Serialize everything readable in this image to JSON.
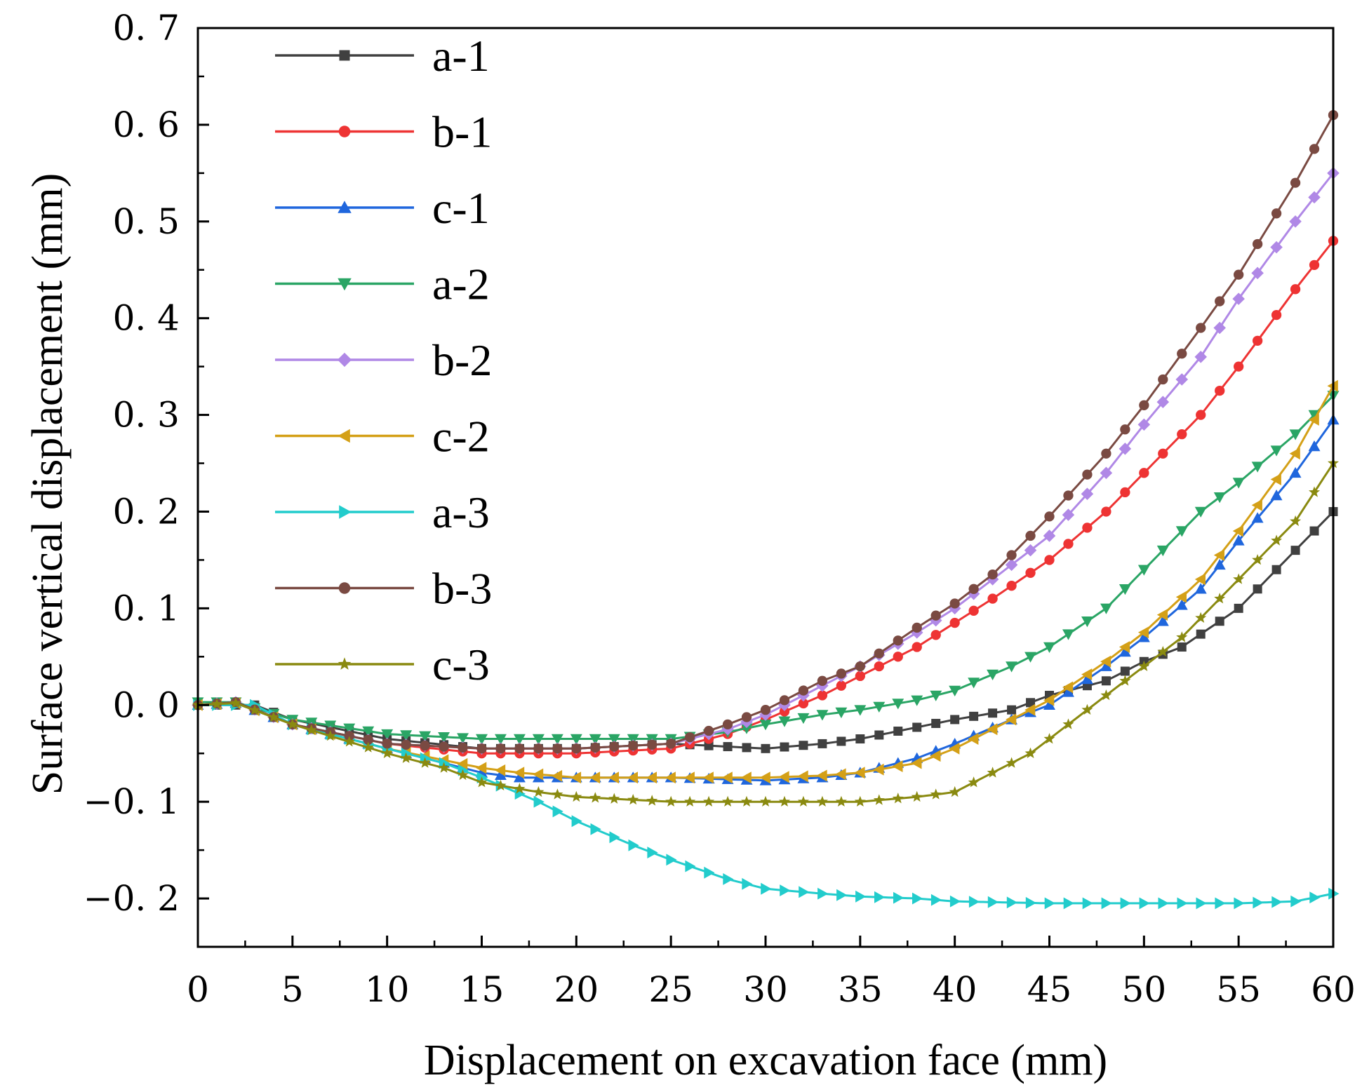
{
  "chart_data": {
    "type": "line",
    "title": "",
    "xlabel": "Displacement on excavation face (mm)",
    "ylabel": "Surface vertical displacement (mm)",
    "xlim": [
      0,
      60
    ],
    "ylim": [
      -0.25,
      0.7
    ],
    "x_ticks": [
      0,
      5,
      10,
      15,
      20,
      25,
      30,
      35,
      40,
      45,
      50,
      55,
      60
    ],
    "x_tick_labels": [
      "0",
      "5",
      "10",
      "15",
      "20",
      "25",
      "30",
      "35",
      "40",
      "45",
      "50",
      "55",
      "60"
    ],
    "y_ticks": [
      -0.2,
      -0.1,
      0.0,
      0.1,
      0.2,
      0.3,
      0.4,
      0.5,
      0.6,
      0.7
    ],
    "y_tick_labels": [
      "−0. 2",
      "−0. 1",
      "0. 0",
      "0. 1",
      "0. 2",
      "0. 3",
      "0. 4",
      "0. 5",
      "0. 6",
      "0. 7"
    ],
    "grid": false,
    "legend_position": "top-left",
    "series": [
      {
        "name": "a-1",
        "color": "#404040",
        "marker": "square",
        "points": [
          [
            0,
            0
          ],
          [
            3,
            0.0
          ],
          [
            5,
            -0.015
          ],
          [
            10,
            -0.035
          ],
          [
            15,
            -0.045
          ],
          [
            20,
            -0.045
          ],
          [
            25,
            -0.04
          ],
          [
            30,
            -0.045
          ],
          [
            33,
            -0.04
          ],
          [
            35,
            -0.035
          ],
          [
            40,
            -0.015
          ],
          [
            43,
            -0.005
          ],
          [
            45,
            0.01
          ],
          [
            48,
            0.025
          ],
          [
            50,
            0.045
          ],
          [
            52,
            0.06
          ],
          [
            55,
            0.1
          ],
          [
            57,
            0.14
          ],
          [
            60,
            0.2
          ]
        ]
      },
      {
        "name": "b-1",
        "color": "#ee3333",
        "marker": "circle",
        "points": [
          [
            0,
            0
          ],
          [
            2,
            0.003
          ],
          [
            5,
            -0.02
          ],
          [
            10,
            -0.04
          ],
          [
            15,
            -0.05
          ],
          [
            20,
            -0.05
          ],
          [
            25,
            -0.045
          ],
          [
            28,
            -0.03
          ],
          [
            30,
            -0.015
          ],
          [
            33,
            0.01
          ],
          [
            35,
            0.03
          ],
          [
            38,
            0.06
          ],
          [
            40,
            0.085
          ],
          [
            42,
            0.11
          ],
          [
            45,
            0.15
          ],
          [
            48,
            0.2
          ],
          [
            50,
            0.24
          ],
          [
            53,
            0.3
          ],
          [
            55,
            0.35
          ],
          [
            58,
            0.43
          ],
          [
            60,
            0.48
          ]
        ]
      },
      {
        "name": "c-1",
        "color": "#1f66dd",
        "marker": "triangle-up",
        "points": [
          [
            0,
            0
          ],
          [
            2,
            0.002
          ],
          [
            5,
            -0.02
          ],
          [
            10,
            -0.045
          ],
          [
            15,
            -0.07
          ],
          [
            17,
            -0.075
          ],
          [
            20,
            -0.075
          ],
          [
            25,
            -0.075
          ],
          [
            30,
            -0.078
          ],
          [
            33,
            -0.075
          ],
          [
            35,
            -0.07
          ],
          [
            38,
            -0.055
          ],
          [
            40,
            -0.04
          ],
          [
            43,
            -0.015
          ],
          [
            45,
            0.0
          ],
          [
            48,
            0.04
          ],
          [
            50,
            0.07
          ],
          [
            53,
            0.12
          ],
          [
            55,
            0.17
          ],
          [
            58,
            0.24
          ],
          [
            60,
            0.295
          ]
        ]
      },
      {
        "name": "a-2",
        "color": "#2aa565",
        "marker": "triangle-down",
        "points": [
          [
            0,
            0.003
          ],
          [
            2,
            0.003
          ],
          [
            5,
            -0.015
          ],
          [
            10,
            -0.03
          ],
          [
            15,
            -0.035
          ],
          [
            20,
            -0.035
          ],
          [
            25,
            -0.035
          ],
          [
            28,
            -0.028
          ],
          [
            30,
            -0.02
          ],
          [
            33,
            -0.01
          ],
          [
            35,
            -0.005
          ],
          [
            38,
            0.005
          ],
          [
            40,
            0.015
          ],
          [
            43,
            0.04
          ],
          [
            45,
            0.06
          ],
          [
            48,
            0.1
          ],
          [
            50,
            0.14
          ],
          [
            53,
            0.2
          ],
          [
            55,
            0.23
          ],
          [
            58,
            0.28
          ],
          [
            60,
            0.32
          ]
        ]
      },
      {
        "name": "b-2",
        "color": "#b088e6",
        "marker": "diamond",
        "points": [
          [
            0,
            0
          ],
          [
            2,
            0.003
          ],
          [
            5,
            -0.02
          ],
          [
            10,
            -0.04
          ],
          [
            15,
            -0.045
          ],
          [
            20,
            -0.045
          ],
          [
            25,
            -0.04
          ],
          [
            28,
            -0.025
          ],
          [
            30,
            -0.01
          ],
          [
            33,
            0.02
          ],
          [
            35,
            0.04
          ],
          [
            38,
            0.075
          ],
          [
            40,
            0.1
          ],
          [
            42,
            0.13
          ],
          [
            45,
            0.175
          ],
          [
            48,
            0.24
          ],
          [
            50,
            0.29
          ],
          [
            53,
            0.36
          ],
          [
            55,
            0.42
          ],
          [
            58,
            0.5
          ],
          [
            60,
            0.55
          ]
        ]
      },
      {
        "name": "c-2",
        "color": "#d4a017",
        "marker": "triangle-left",
        "points": [
          [
            0,
            0
          ],
          [
            2,
            0.002
          ],
          [
            5,
            -0.02
          ],
          [
            10,
            -0.045
          ],
          [
            15,
            -0.065
          ],
          [
            17,
            -0.07
          ],
          [
            20,
            -0.075
          ],
          [
            25,
            -0.075
          ],
          [
            30,
            -0.075
          ],
          [
            33,
            -0.073
          ],
          [
            35,
            -0.07
          ],
          [
            38,
            -0.06
          ],
          [
            40,
            -0.045
          ],
          [
            43,
            -0.015
          ],
          [
            45,
            0.005
          ],
          [
            48,
            0.045
          ],
          [
            50,
            0.075
          ],
          [
            53,
            0.13
          ],
          [
            55,
            0.18
          ],
          [
            58,
            0.26
          ],
          [
            60,
            0.33
          ]
        ]
      },
      {
        "name": "a-3",
        "color": "#22cccc",
        "marker": "triangle-right",
        "points": [
          [
            0,
            0
          ],
          [
            3,
            0.0
          ],
          [
            5,
            -0.02
          ],
          [
            10,
            -0.045
          ],
          [
            13,
            -0.06
          ],
          [
            15,
            -0.075
          ],
          [
            18,
            -0.1
          ],
          [
            20,
            -0.12
          ],
          [
            23,
            -0.145
          ],
          [
            25,
            -0.16
          ],
          [
            28,
            -0.18
          ],
          [
            30,
            -0.19
          ],
          [
            33,
            -0.195
          ],
          [
            35,
            -0.198
          ],
          [
            38,
            -0.2
          ],
          [
            40,
            -0.203
          ],
          [
            45,
            -0.205
          ],
          [
            50,
            -0.205
          ],
          [
            55,
            -0.205
          ],
          [
            58,
            -0.203
          ],
          [
            60,
            -0.195
          ]
        ]
      },
      {
        "name": "b-3",
        "color": "#7a4a42",
        "marker": "circle",
        "points": [
          [
            0,
            0
          ],
          [
            2,
            0.003
          ],
          [
            5,
            -0.02
          ],
          [
            10,
            -0.04
          ],
          [
            15,
            -0.045
          ],
          [
            20,
            -0.045
          ],
          [
            25,
            -0.04
          ],
          [
            28,
            -0.02
          ],
          [
            30,
            -0.005
          ],
          [
            33,
            0.025
          ],
          [
            35,
            0.04
          ],
          [
            38,
            0.08
          ],
          [
            40,
            0.105
          ],
          [
            42,
            0.135
          ],
          [
            45,
            0.195
          ],
          [
            48,
            0.26
          ],
          [
            50,
            0.31
          ],
          [
            53,
            0.39
          ],
          [
            55,
            0.445
          ],
          [
            58,
            0.54
          ],
          [
            60,
            0.61
          ]
        ]
      },
      {
        "name": "c-3",
        "color": "#8a8a10",
        "marker": "star",
        "points": [
          [
            0,
            0
          ],
          [
            2,
            0.002
          ],
          [
            5,
            -0.02
          ],
          [
            10,
            -0.05
          ],
          [
            13,
            -0.065
          ],
          [
            15,
            -0.08
          ],
          [
            18,
            -0.09
          ],
          [
            20,
            -0.095
          ],
          [
            25,
            -0.1
          ],
          [
            30,
            -0.1
          ],
          [
            35,
            -0.1
          ],
          [
            38,
            -0.095
          ],
          [
            40,
            -0.09
          ],
          [
            42,
            -0.07
          ],
          [
            44,
            -0.05
          ],
          [
            46,
            -0.02
          ],
          [
            48,
            0.01
          ],
          [
            50,
            0.04
          ],
          [
            52,
            0.07
          ],
          [
            54,
            0.11
          ],
          [
            56,
            0.15
          ],
          [
            58,
            0.19
          ],
          [
            60,
            0.25
          ]
        ]
      }
    ]
  }
}
